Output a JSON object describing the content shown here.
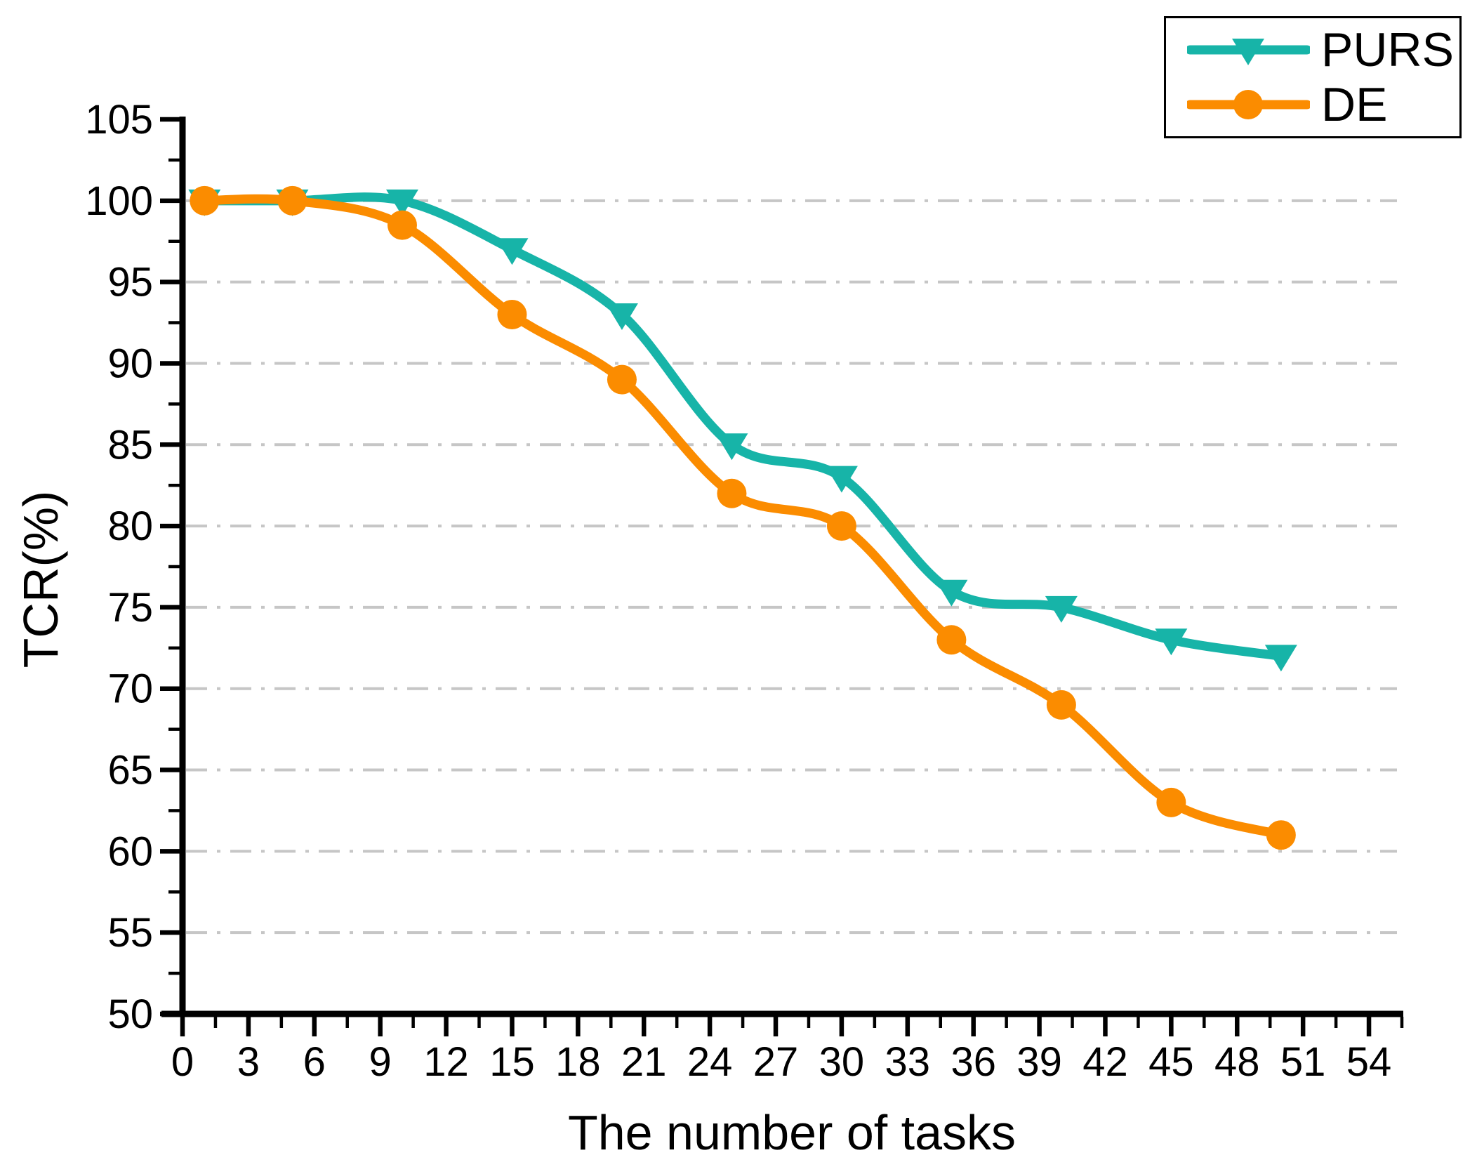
{
  "chart_data": {
    "type": "line",
    "title": "",
    "xlabel": "The number of tasks",
    "ylabel": "TCR(%)",
    "x": [
      1,
      5,
      10,
      15,
      20,
      25,
      30,
      35,
      40,
      45,
      50
    ],
    "series": [
      {
        "name": "PURS",
        "color": "#17B4A8",
        "marker": "triangle-down",
        "values": [
          100,
          100,
          100,
          97,
          93,
          85,
          83,
          76,
          75,
          73,
          72
        ]
      },
      {
        "name": "DE",
        "color": "#FB8C00",
        "marker": "circle",
        "values": [
          100,
          100,
          98.5,
          93,
          89,
          82,
          80,
          73,
          69,
          63,
          61
        ]
      }
    ],
    "xlim": [
      0,
      55.5
    ],
    "ylim": [
      50,
      105
    ],
    "xticks_major": [
      0,
      3,
      6,
      9,
      12,
      15,
      18,
      21,
      24,
      27,
      30,
      33,
      36,
      39,
      42,
      45,
      48,
      51,
      54
    ],
    "xticks_minor": [
      1.5,
      4.5,
      7.5,
      10.5,
      13.5,
      16.5,
      19.5,
      22.5,
      25.5,
      28.5,
      31.5,
      34.5,
      37.5,
      40.5,
      43.5,
      46.5,
      49.5,
      52.5,
      55.5
    ],
    "yticks_major": [
      50,
      55,
      60,
      65,
      70,
      75,
      80,
      85,
      90,
      95,
      100,
      105
    ],
    "yticks_minor": [
      52.5,
      57.5,
      62.5,
      67.5,
      72.5,
      77.5,
      82.5,
      87.5,
      92.5,
      97.5,
      102.5
    ],
    "gridlines_y": [
      55,
      60,
      65,
      70,
      75,
      80,
      85,
      90,
      95,
      100
    ],
    "grid_style": "dash-dot",
    "grid_color": "#C6C6C6",
    "axis_color": "#000000",
    "legend": {
      "position": "top-right",
      "entries": [
        "PURS",
        "DE"
      ]
    }
  }
}
